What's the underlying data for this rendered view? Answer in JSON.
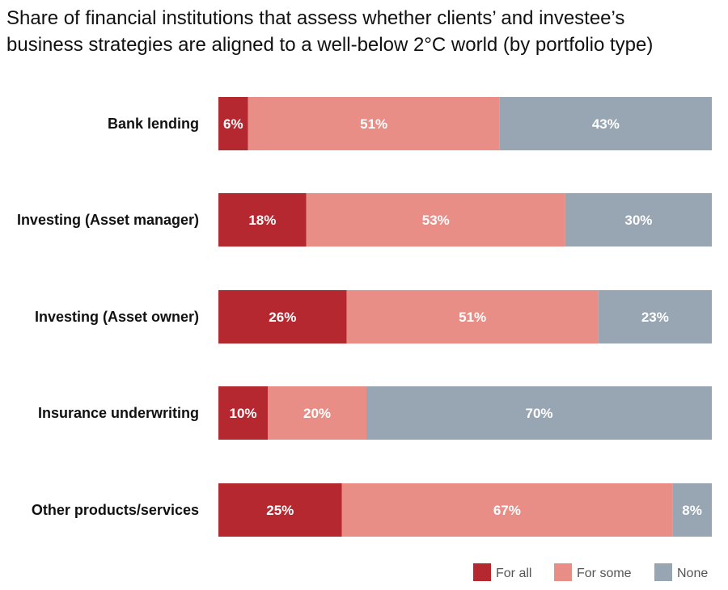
{
  "chart_data": {
    "type": "bar",
    "orientation": "horizontal",
    "stacked": true,
    "title": "Share of financial institutions that assess whether clients’ and investee’s business strategies are aligned to a well-below 2°C world (by portfolio type)",
    "categories": [
      "Bank lending",
      "Investing (Asset manager)",
      "Investing (Asset owner)",
      "Insurance underwriting",
      "Other products/services"
    ],
    "series": [
      {
        "name": "For all",
        "color": "#b5282f",
        "values": [
          6,
          18,
          26,
          10,
          25
        ]
      },
      {
        "name": "For some",
        "color": "#e98e86",
        "values": [
          51,
          53,
          51,
          20,
          67
        ]
      },
      {
        "name": "None",
        "color": "#97a6b2",
        "values": [
          43,
          30,
          23,
          70,
          8
        ]
      }
    ],
    "value_suffix": "%",
    "legend_position": "bottom-right"
  }
}
